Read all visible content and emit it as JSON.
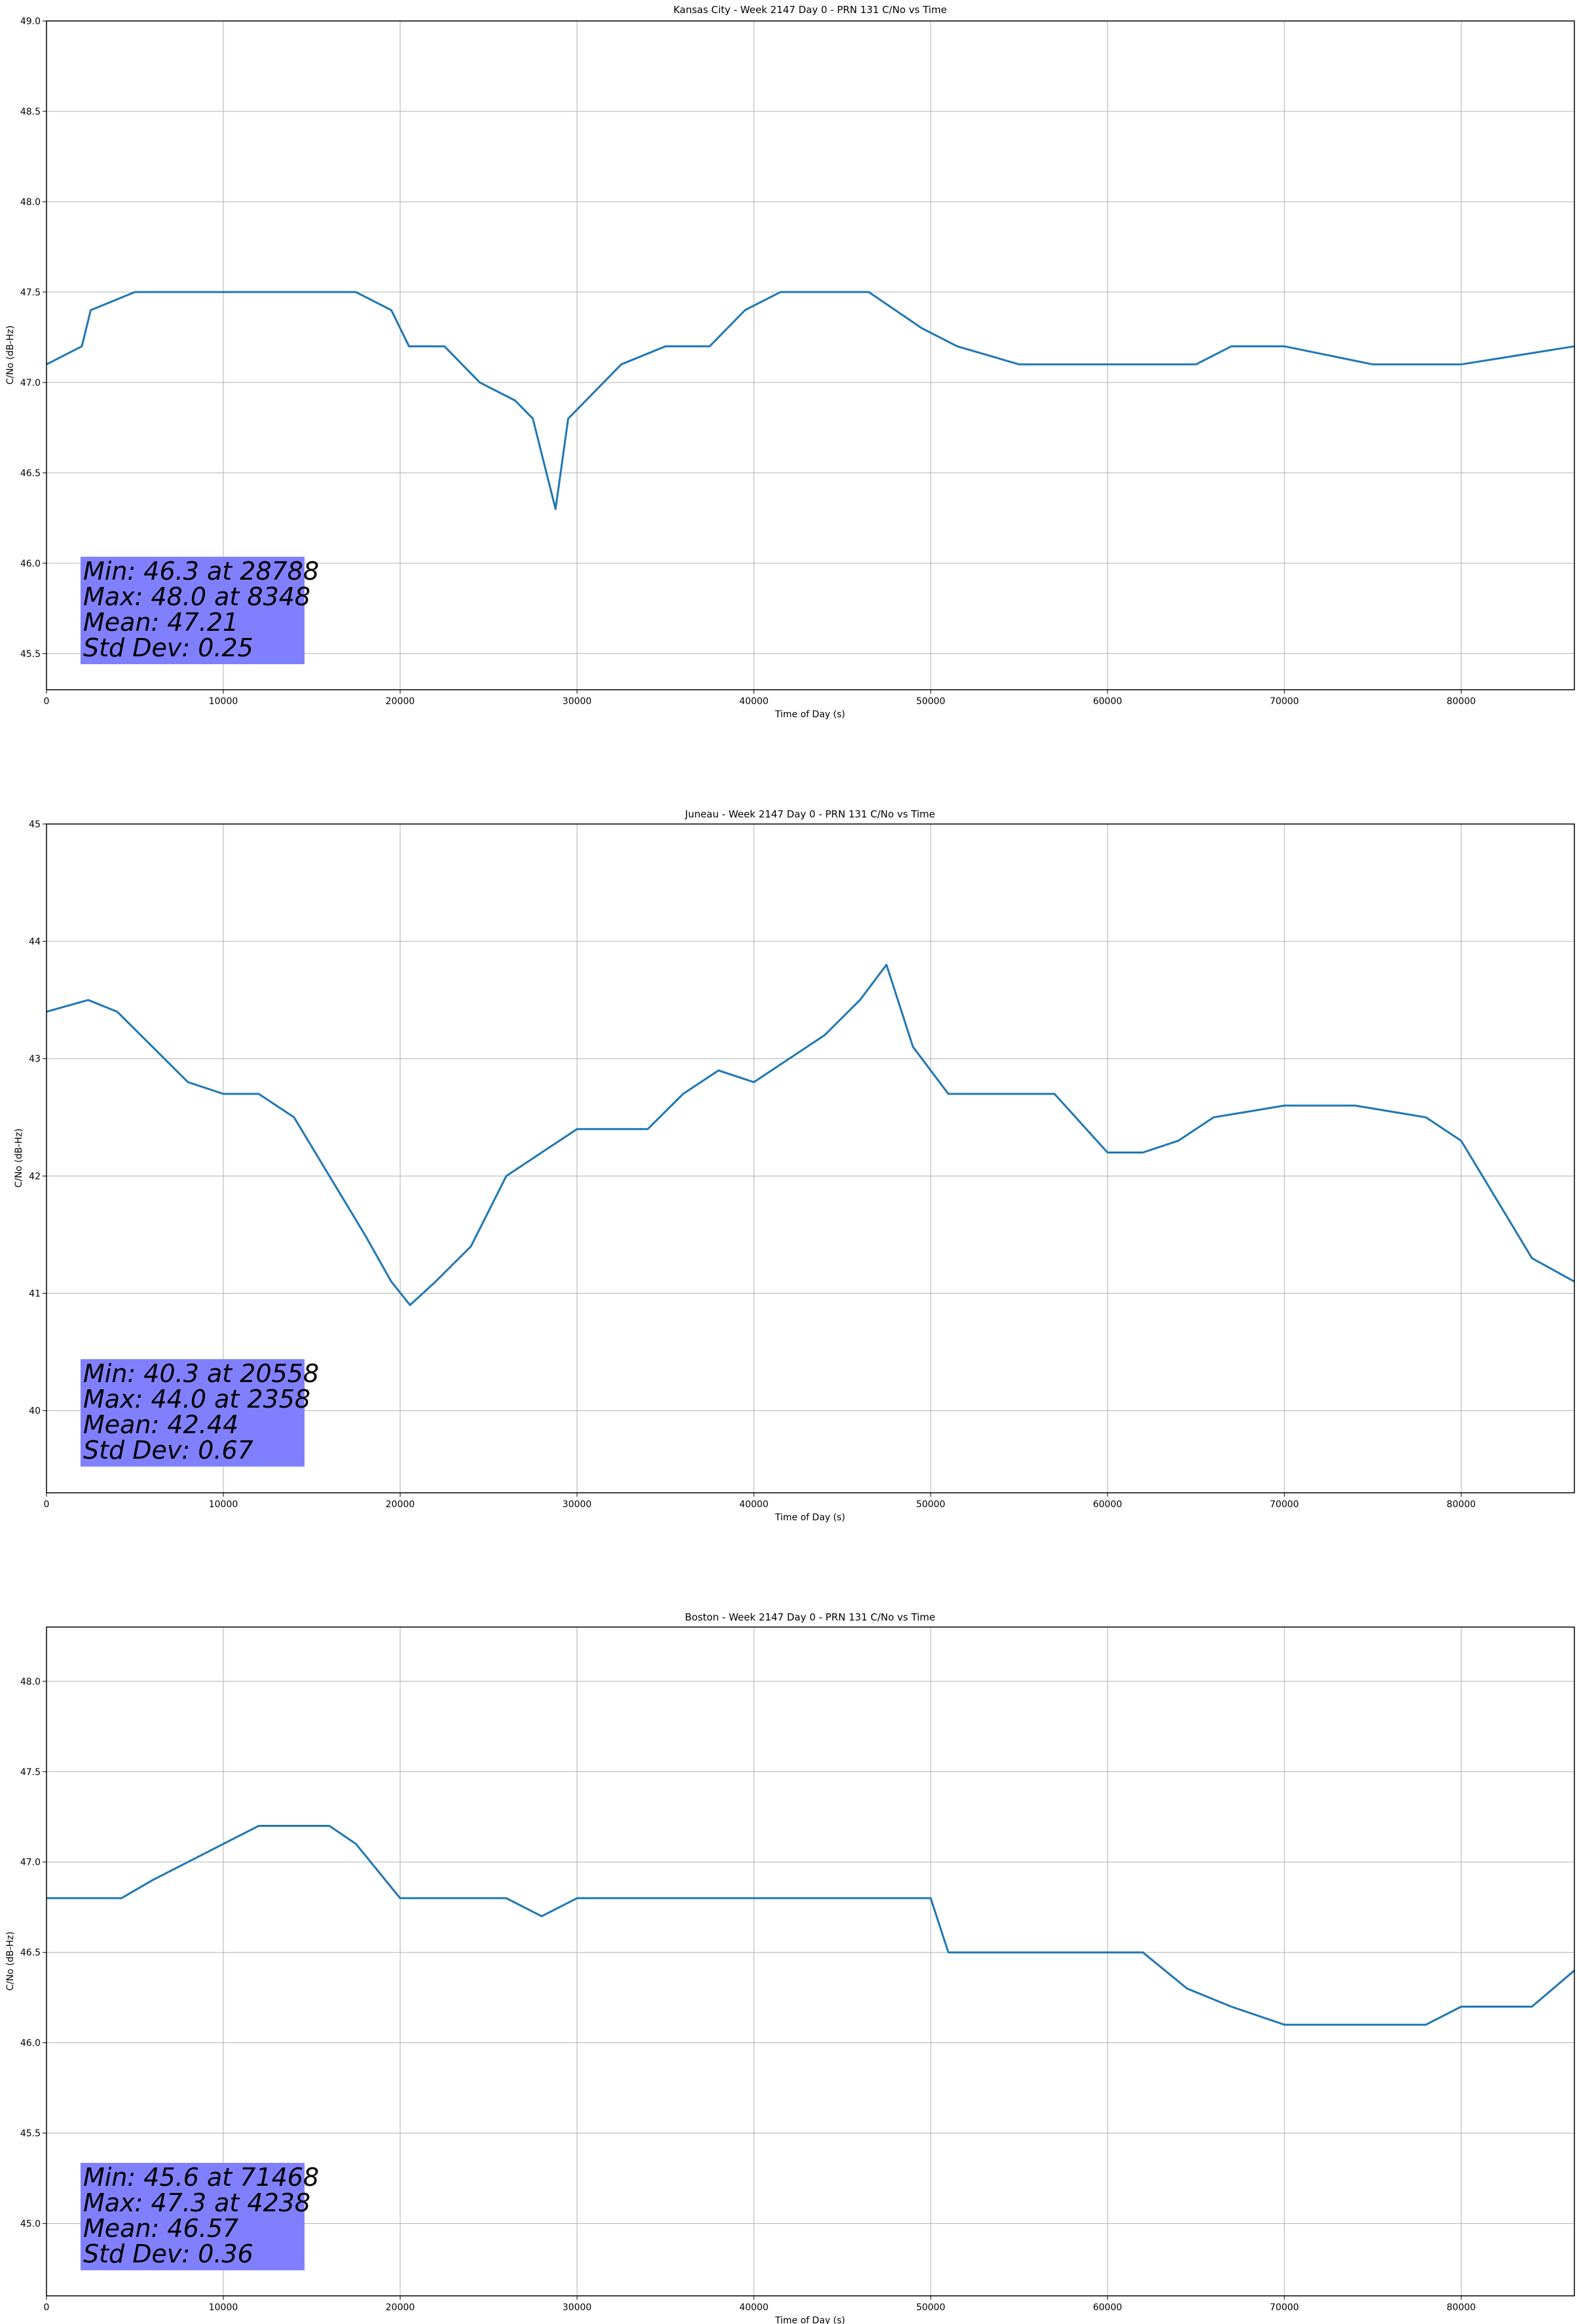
{
  "colors": {
    "series": "#1f77b4",
    "stat_box": "#8080ff",
    "grid": "#b0b0b0",
    "axis": "#000000",
    "background": "#ffffff"
  },
  "chart_data": [
    {
      "type": "line",
      "title": "Kansas City - Week 2147 Day 0 - PRN 131 C/No vs Time",
      "xlabel": "Time of Day (s)",
      "ylabel": "C/No (dB-Hz)",
      "xlim": [
        0,
        86400
      ],
      "ylim": [
        45.3,
        49.0
      ],
      "xticks": [
        0,
        10000,
        20000,
        30000,
        40000,
        50000,
        60000,
        70000,
        80000
      ],
      "yticks": [
        45.5,
        46.0,
        46.5,
        47.0,
        47.5,
        48.0,
        48.5,
        49.0
      ],
      "grid": true,
      "legend": "none",
      "series": [
        {
          "x": [
            0,
            2000,
            2500,
            5000,
            7500,
            10000,
            12500,
            15000,
            17500,
            19500,
            20500,
            22500,
            24500,
            26500,
            27500,
            28788,
            29500,
            31500,
            32500,
            35000,
            37500,
            39500,
            41500,
            44000,
            46500,
            49500,
            51500,
            55000,
            60000,
            65000,
            67000,
            70000,
            75000,
            80000,
            86400
          ],
          "y": [
            47.1,
            47.2,
            47.4,
            47.5,
            47.5,
            47.5,
            47.5,
            47.5,
            47.5,
            47.4,
            47.2,
            47.2,
            47.0,
            46.9,
            46.8,
            46.3,
            46.8,
            47.0,
            47.1,
            47.2,
            47.2,
            47.4,
            47.5,
            47.5,
            47.5,
            47.3,
            47.2,
            47.1,
            47.1,
            47.1,
            47.2,
            47.2,
            47.1,
            47.1,
            47.2
          ]
        }
      ],
      "stats": {
        "line1": "Min: 46.3 at 28788",
        "line2": "Max: 48.0 at 8348",
        "line3": "Mean: 47.21",
        "line4": "Std Dev: 0.25"
      }
    },
    {
      "type": "line",
      "title": "Juneau - Week 2147 Day 0 - PRN 131 C/No vs Time",
      "xlabel": "Time of Day (s)",
      "ylabel": "C/No (dB-Hz)",
      "xlim": [
        0,
        86400
      ],
      "ylim": [
        39.3,
        45.0
      ],
      "xticks": [
        0,
        10000,
        20000,
        30000,
        40000,
        50000,
        60000,
        70000,
        80000
      ],
      "yticks": [
        40,
        41,
        42,
        43,
        44,
        45
      ],
      "grid": true,
      "legend": "none",
      "series": [
        {
          "x": [
            0,
            2358,
            4000,
            6000,
            8000,
            10000,
            12000,
            14000,
            16000,
            18000,
            19500,
            20558,
            22000,
            24000,
            26000,
            28000,
            30000,
            32000,
            34000,
            36000,
            38000,
            40000,
            42000,
            44000,
            46000,
            47500,
            49000,
            51000,
            54000,
            57000,
            60000,
            62000,
            64000,
            66000,
            70000,
            74000,
            78000,
            80000,
            82000,
            84000,
            86400
          ],
          "y": [
            43.4,
            43.5,
            43.4,
            43.1,
            42.8,
            42.7,
            42.7,
            42.5,
            42.0,
            41.5,
            41.1,
            40.9,
            41.1,
            41.4,
            42.0,
            42.2,
            42.4,
            42.4,
            42.4,
            42.7,
            42.9,
            42.8,
            43.0,
            43.2,
            43.5,
            43.8,
            43.1,
            42.7,
            42.7,
            42.7,
            42.2,
            42.2,
            42.3,
            42.5,
            42.6,
            42.6,
            42.5,
            42.3,
            41.8,
            41.3,
            41.1
          ]
        }
      ],
      "stats": {
        "line1": "Min: 40.3 at 20558",
        "line2": "Max: 44.0 at 2358",
        "line3": "Mean: 42.44",
        "line4": "Std Dev: 0.67"
      }
    },
    {
      "type": "line",
      "title": "Boston - Week 2147 Day 0 - PRN 131 C/No vs Time",
      "xlabel": "Time of Day (s)",
      "ylabel": "C/No (dB-Hz)",
      "xlim": [
        0,
        86400
      ],
      "ylim": [
        44.6,
        48.3
      ],
      "xticks": [
        0,
        10000,
        20000,
        30000,
        40000,
        50000,
        60000,
        70000,
        80000
      ],
      "yticks": [
        45.0,
        45.5,
        46.0,
        46.5,
        47.0,
        47.5,
        48.0
      ],
      "grid": true,
      "legend": "none",
      "series": [
        {
          "x": [
            0,
            2000,
            4238,
            6000,
            8000,
            10000,
            12000,
            14000,
            16000,
            17500,
            20000,
            24000,
            26000,
            28000,
            30000,
            34000,
            38000,
            42000,
            46000,
            50000,
            51000,
            54000,
            58000,
            62000,
            64500,
            67000,
            70000,
            71468,
            74000,
            78000,
            80000,
            84000,
            86400
          ],
          "y": [
            46.8,
            46.8,
            46.8,
            46.9,
            47.0,
            47.1,
            47.2,
            47.2,
            47.2,
            47.1,
            46.8,
            46.8,
            46.8,
            46.7,
            46.8,
            46.8,
            46.8,
            46.8,
            46.8,
            46.8,
            46.5,
            46.5,
            46.5,
            46.5,
            46.3,
            46.2,
            46.1,
            46.1,
            46.1,
            46.1,
            46.2,
            46.2,
            46.4
          ]
        }
      ],
      "stats": {
        "line1": "Min: 45.6 at 71468",
        "line2": "Max: 47.3 at 4238",
        "line3": "Mean: 46.57",
        "line4": "Std Dev: 0.36"
      }
    }
  ]
}
